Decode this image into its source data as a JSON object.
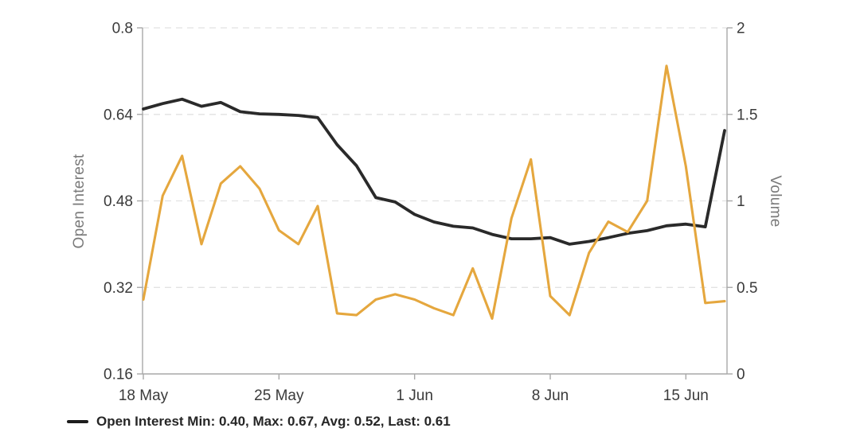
{
  "chart": {
    "left_axis": {
      "title": "Open Interest",
      "ticks": [
        {
          "label": "0.8",
          "value": 0.8
        },
        {
          "label": "0.64",
          "value": 0.64
        },
        {
          "label": "0.48",
          "value": 0.48
        },
        {
          "label": "0.32",
          "value": 0.32
        },
        {
          "label": "0.16",
          "value": 0.16
        }
      ]
    },
    "right_axis": {
      "title": "Volume",
      "ticks": [
        {
          "label": "2",
          "value": 2
        },
        {
          "label": "1.5",
          "value": 1.5
        },
        {
          "label": "1",
          "value": 1
        },
        {
          "label": "0.5",
          "value": 0.5
        },
        {
          "label": "0",
          "value": 0
        }
      ]
    },
    "x_axis": {
      "ticks": [
        {
          "label": "18 May",
          "index": 0
        },
        {
          "label": "25 May",
          "index": 7
        },
        {
          "label": "1 Jun",
          "index": 14
        },
        {
          "label": "8 Jun",
          "index": 21
        },
        {
          "label": "15 Jun",
          "index": 28
        }
      ]
    },
    "legend": {
      "open_interest_label": "Open Interest Min: 0.40, Max: 0.67, Avg: 0.52, Last: 0.61"
    },
    "colors": {
      "open_interest": "#2a2a2a",
      "volume": "#e5a73e",
      "grid": "#e2e2e2",
      "axis": "#a8a8a8",
      "tick_text": "#3a3a3a",
      "axis_title": "#7a7a7a",
      "legend_text": "#262626"
    }
  },
  "chart_data": {
    "type": "line",
    "x": [
      "18 May",
      "19 May",
      "20 May",
      "21 May",
      "22 May",
      "23 May",
      "24 May",
      "25 May",
      "26 May",
      "27 May",
      "28 May",
      "29 May",
      "30 May",
      "31 May",
      "1 Jun",
      "2 Jun",
      "3 Jun",
      "4 Jun",
      "5 Jun",
      "6 Jun",
      "7 Jun",
      "8 Jun",
      "9 Jun",
      "10 Jun",
      "11 Jun",
      "12 Jun",
      "13 Jun",
      "14 Jun",
      "15 Jun",
      "16 Jun",
      "17 Jun"
    ],
    "series": [
      {
        "name": "Open Interest",
        "yaxis": "left",
        "color": "#2a2a2a",
        "values": [
          0.65,
          0.66,
          0.668,
          0.655,
          0.662,
          0.645,
          0.641,
          0.64,
          0.638,
          0.634,
          0.584,
          0.545,
          0.486,
          0.478,
          0.455,
          0.441,
          0.433,
          0.43,
          0.418,
          0.41,
          0.41,
          0.412,
          0.4,
          0.405,
          0.412,
          0.42,
          0.425,
          0.434,
          0.437,
          0.432,
          0.61
        ]
      },
      {
        "name": "Volume",
        "yaxis": "right",
        "color": "#e5a73e",
        "values": [
          0.43,
          1.03,
          1.26,
          0.75,
          1.1,
          1.2,
          1.07,
          0.83,
          0.75,
          0.97,
          0.35,
          0.34,
          0.43,
          0.46,
          0.43,
          0.38,
          0.34,
          0.61,
          0.32,
          0.9,
          1.24,
          0.45,
          0.34,
          0.7,
          0.88,
          0.82,
          1.0,
          1.78,
          1.2,
          0.41,
          0.42
        ]
      }
    ],
    "title": "",
    "xlabel": "",
    "left_ylabel": "Open Interest",
    "right_ylabel": "Volume",
    "left_ylim": [
      0.16,
      0.8
    ],
    "right_ylim": [
      0,
      2
    ],
    "grid": true,
    "legend_position": "bottom-left",
    "legend_entries": [
      "Open Interest Min: 0.40, Max: 0.67, Avg: 0.52, Last: 0.61"
    ],
    "stats": {
      "min": 0.4,
      "max": 0.67,
      "avg": 0.52,
      "last": 0.61
    }
  }
}
